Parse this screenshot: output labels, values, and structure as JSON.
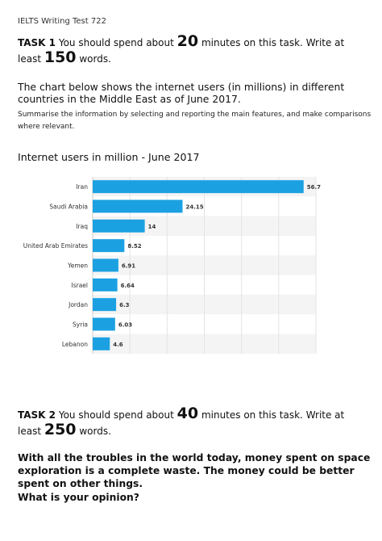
{
  "header": {
    "title": "IELTS Writing Test 722"
  },
  "task1": {
    "label": "TASK 1",
    "text_a": "You should spend about",
    "minutes": "20",
    "text_b": "minutes on this task. Write at",
    "text_c": "least",
    "words": "150",
    "text_d": "words."
  },
  "prompt": {
    "intro": "The chart below shows the internet users (in millions) in different countries in the Middle East as of June 2017.",
    "summarise": "Summarise the information by selecting and reporting the main features, and make comparisons where relevant."
  },
  "chart_data": {
    "type": "bar",
    "orientation": "horizontal",
    "title": "Internet users in million - June 2017",
    "categories": [
      "Iran",
      "Saudi Arabia",
      "Iraq",
      "United Arab Emirates",
      "Yemen",
      "Israel",
      "Jordan",
      "Syria",
      "Lebanon"
    ],
    "values": [
      56.7,
      24.15,
      14,
      8.52,
      6.91,
      6.64,
      6.3,
      6.03,
      4.6
    ],
    "value_labels": [
      "56.7",
      "24.15",
      "14",
      "8.52",
      "6.91",
      "6.64",
      "6.3",
      "6.03",
      "4.6"
    ],
    "xlim": [
      0,
      60
    ],
    "bar_color": "#1ba1e2",
    "grid": true,
    "legend": "none"
  },
  "task2": {
    "label": "TASK 2",
    "text_a": "You should spend about",
    "minutes": "40",
    "text_b": "minutes on this task. Write at",
    "text_c": "least",
    "words": "250",
    "text_d": "words."
  },
  "essay": {
    "statement": "With all the troubles in the world today, money spent on space exploration is a complete waste. The money could be better spent on other things.",
    "question": "What is your opinion?"
  }
}
